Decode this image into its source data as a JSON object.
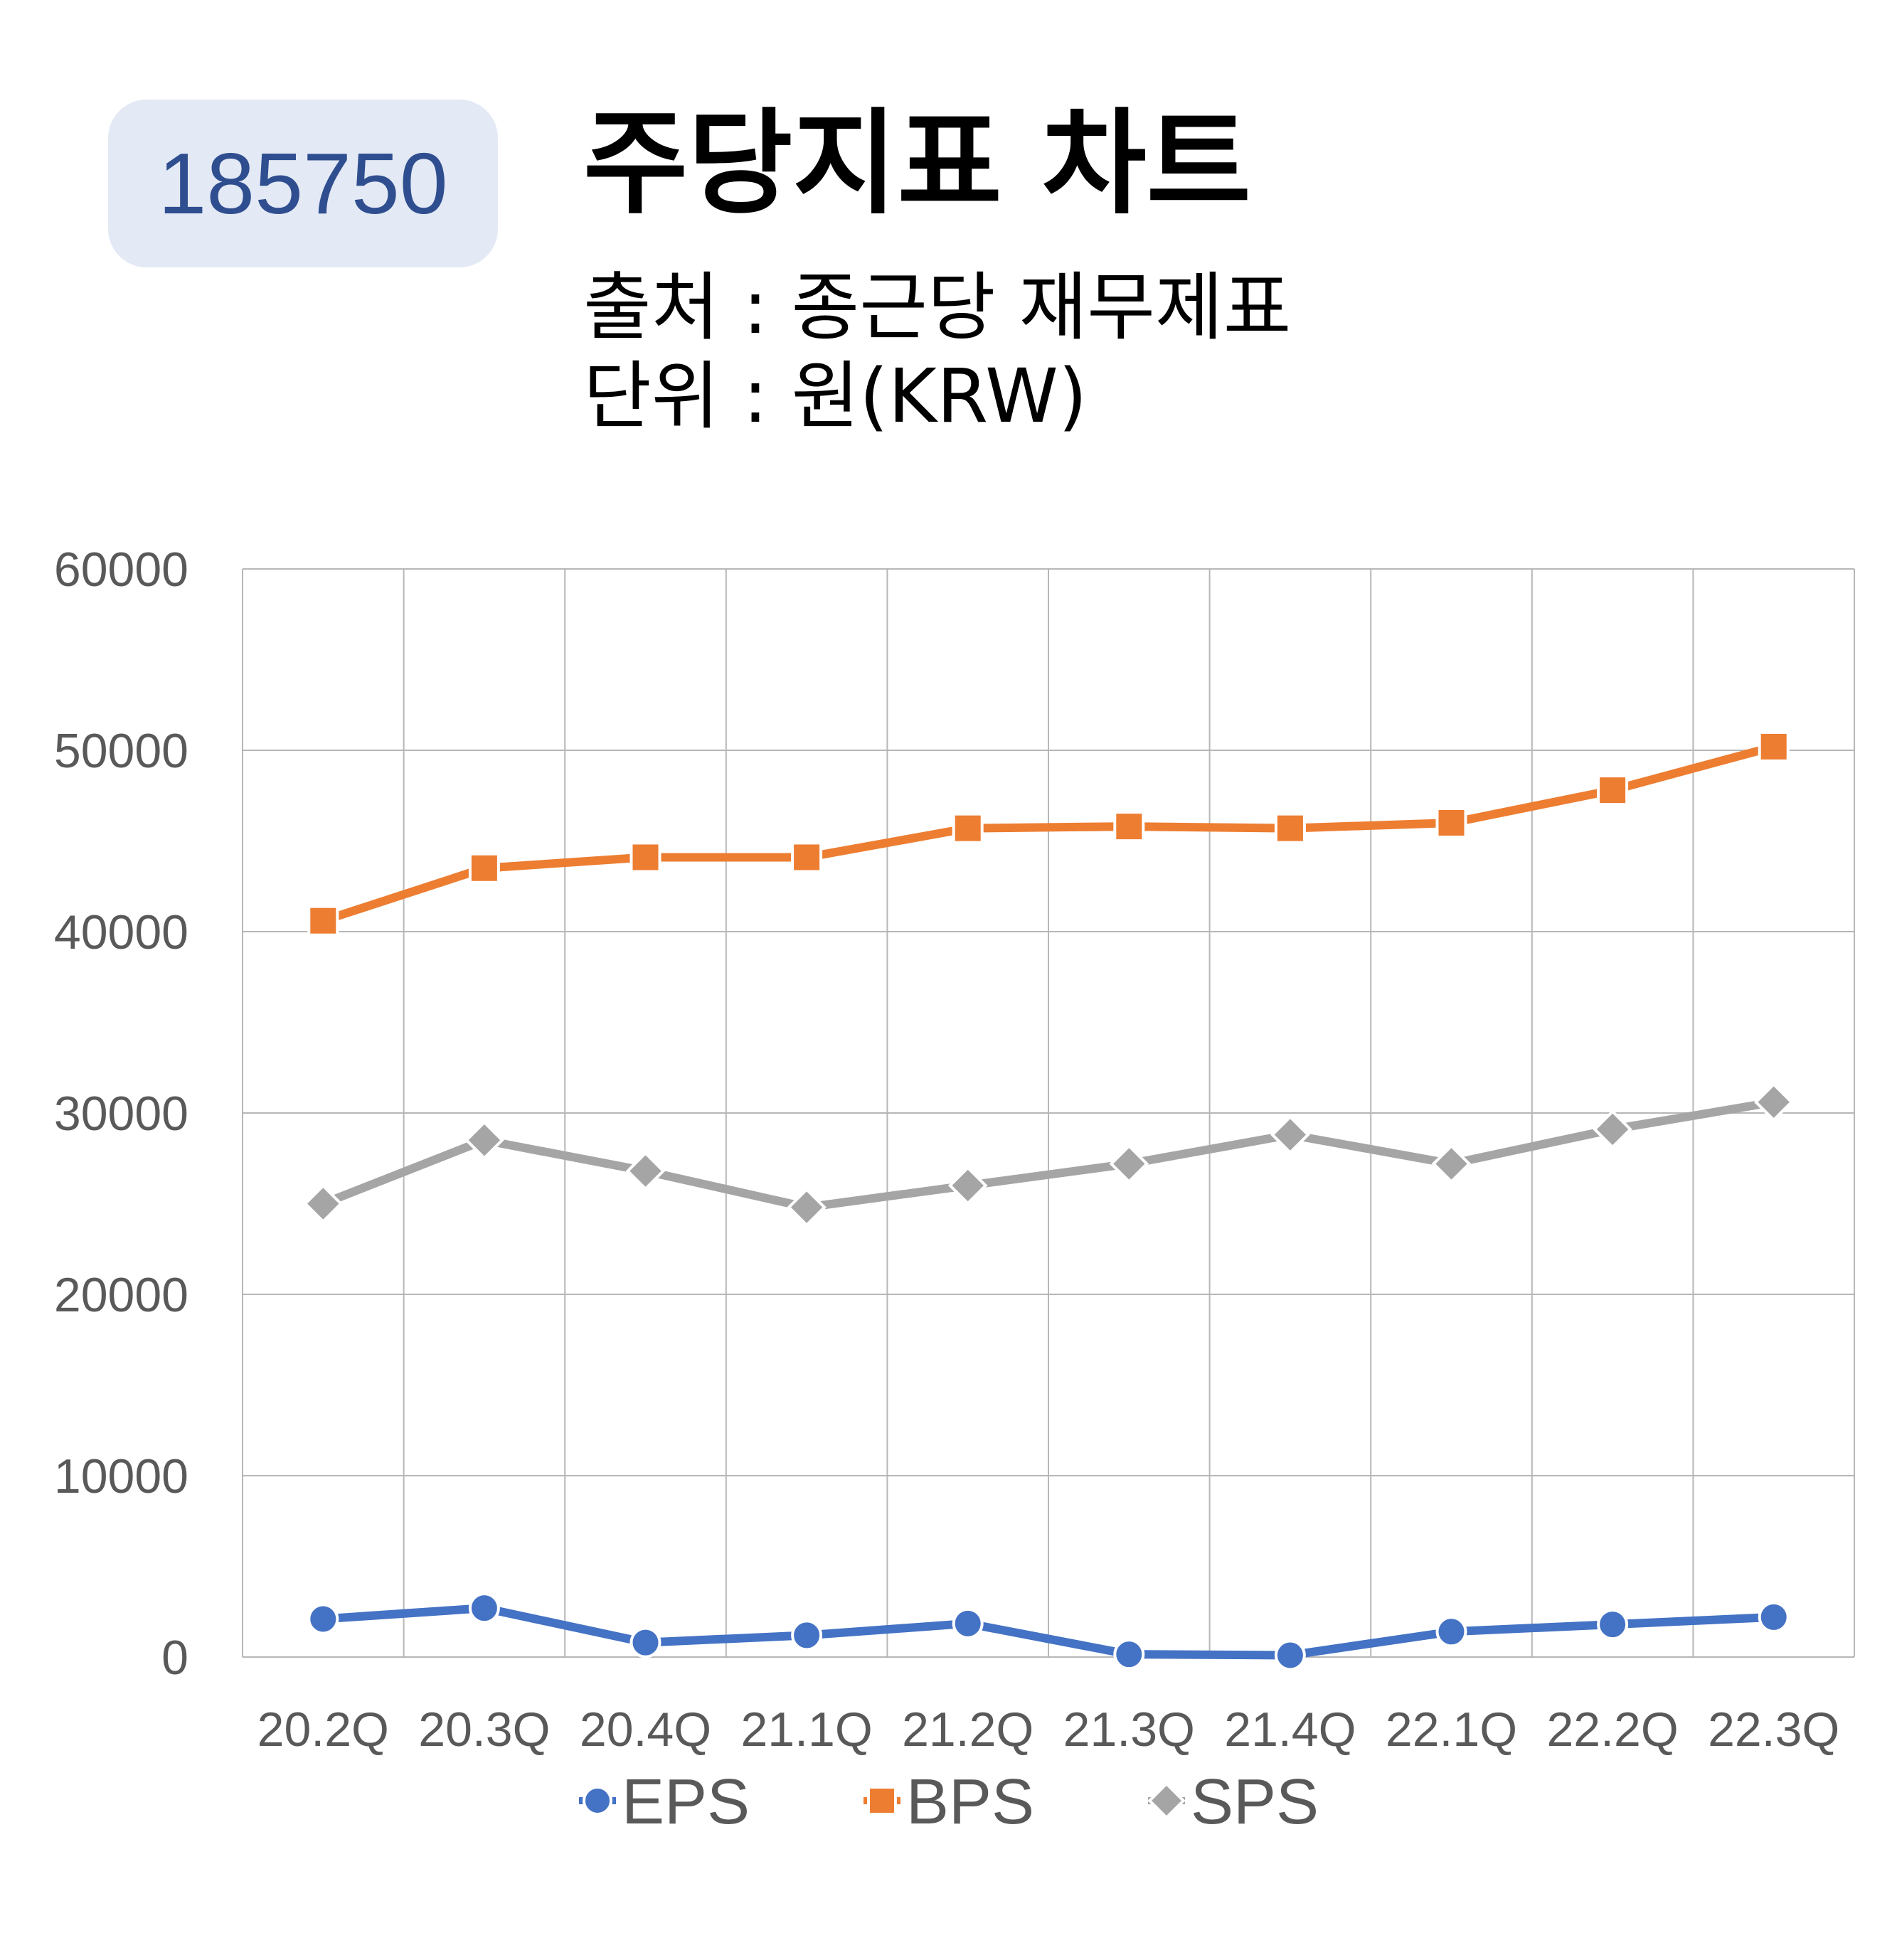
{
  "header": {
    "code_badge": "185750",
    "title": "주당지표 차트",
    "source": "출처 : 종근당 재무제표",
    "unit": "단위 : 원(KRW)"
  },
  "colors": {
    "EPS": "#4472c4",
    "BPS": "#ed7d31",
    "SPS": "#a5a5a5",
    "badge_bg": "#e3e9f5",
    "badge_text": "#2f4e8f",
    "grid": "#b7b7b7",
    "tick_text": "#595959"
  },
  "chart_data": {
    "type": "line",
    "categories": [
      "20.2Q",
      "20.3Q",
      "20.4Q",
      "21.1Q",
      "21.2Q",
      "21.3Q",
      "21.4Q",
      "22.1Q",
      "22.2Q",
      "22.3Q"
    ],
    "series": [
      {
        "name": "EPS",
        "marker": "circle",
        "values": [
          2100,
          2700,
          800,
          1200,
          1850,
          150,
          100,
          1400,
          1800,
          2200
        ]
      },
      {
        "name": "BPS",
        "marker": "square",
        "values": [
          40600,
          43500,
          44100,
          44100,
          45700,
          45800,
          45700,
          46000,
          47800,
          50200
        ]
      },
      {
        "name": "SPS",
        "marker": "diamond",
        "values": [
          25000,
          28500,
          26800,
          24800,
          26000,
          27200,
          28800,
          27200,
          29100,
          30600
        ]
      }
    ],
    "ylim": [
      0,
      60000
    ],
    "yticks": [
      "0",
      "10000",
      "20000",
      "30000",
      "40000",
      "50000",
      "60000"
    ],
    "grid": true,
    "legend": "bottom"
  }
}
